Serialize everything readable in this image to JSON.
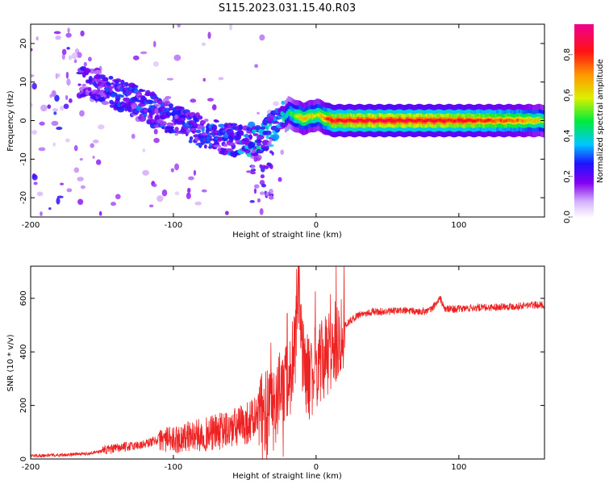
{
  "title": "S115.2023.031.15.40.R03",
  "chart_data": [
    {
      "type": "heatmap",
      "xlabel": "Height of straight line (km)",
      "ylabel": "Frequency (Hz)",
      "xlim": [
        -200,
        160
      ],
      "ylim": [
        -25,
        25
      ],
      "x_ticks": [
        -200,
        -100,
        0,
        100
      ],
      "x_tick_labels": [
        "-200",
        "-100",
        "0",
        "100"
      ],
      "y_ticks": [
        -20,
        -10,
        0,
        10,
        20
      ],
      "y_tick_labels": [
        "-20",
        "-10",
        "0",
        "10",
        "20"
      ],
      "colorbar": {
        "label": "Normalized spectral amplitude",
        "range": [
          0,
          0.95
        ],
        "ticks": [
          0,
          0.2,
          0.4,
          0.6,
          0.8
        ],
        "tick_labels": [
          "0.0",
          "0.2",
          "0.4",
          "0.6",
          "0.8"
        ],
        "colormap": "rainbow"
      },
      "ridge": [
        {
          "x": -160,
          "freq": 10,
          "amp": 0.25
        },
        {
          "x": -140,
          "freq": 7,
          "amp": 0.28
        },
        {
          "x": -120,
          "freq": 4,
          "amp": 0.3
        },
        {
          "x": -100,
          "freq": 0,
          "amp": 0.28
        },
        {
          "x": -80,
          "freq": -3,
          "amp": 0.3
        },
        {
          "x": -60,
          "freq": -5,
          "amp": 0.3
        },
        {
          "x": -40,
          "freq": -5,
          "amp": 0.4
        },
        {
          "x": -28,
          "freq": -1,
          "amp": 0.35
        },
        {
          "x": -20,
          "freq": 2,
          "amp": 0.45
        },
        {
          "x": -10,
          "freq": 0.5,
          "amp": 0.7
        },
        {
          "x": 0,
          "freq": 1.5,
          "amp": 0.6
        },
        {
          "x": 10,
          "freq": 0,
          "amp": 0.85
        },
        {
          "x": 50,
          "freq": 0,
          "amp": 0.88
        },
        {
          "x": 100,
          "freq": 0,
          "amp": 0.85
        },
        {
          "x": 140,
          "freq": 0,
          "amp": 0.75
        },
        {
          "x": 160,
          "freq": 0,
          "amp": 0.6
        }
      ]
    },
    {
      "type": "line",
      "xlabel": "Height of straight line (km)",
      "ylabel": "SNR (10 * v/v)",
      "xlim": [
        -200,
        160
      ],
      "ylim": [
        0,
        720
      ],
      "x_ticks": [
        -200,
        -100,
        0,
        100
      ],
      "x_tick_labels": [
        "-200",
        "-100",
        "0",
        "100"
      ],
      "y_ticks": [
        0,
        200,
        400,
        600
      ],
      "y_tick_labels": [
        "0",
        "200",
        "400",
        "600"
      ],
      "color": "#ee2222",
      "series": [
        {
          "x": [
            -200,
            -180,
            -160,
            -140,
            -120,
            -110,
            -100,
            -90,
            -80,
            -70,
            -60,
            -50,
            -40,
            -35,
            -30,
            -25,
            -20,
            -15,
            -12,
            -10,
            -5,
            0,
            5,
            10,
            15,
            20,
            25,
            30,
            40,
            50,
            60,
            70,
            80,
            87,
            90,
            100,
            110,
            120,
            130,
            140,
            150,
            160
          ],
          "y": [
            12,
            15,
            20,
            40,
            55,
            75,
            70,
            85,
            90,
            100,
            110,
            130,
            160,
            170,
            190,
            250,
            300,
            350,
            700,
            380,
            300,
            350,
            360,
            390,
            450,
            500,
            520,
            540,
            550,
            550,
            555,
            550,
            555,
            600,
            560,
            560,
            565,
            565,
            570,
            570,
            575,
            575
          ]
        }
      ]
    }
  ]
}
